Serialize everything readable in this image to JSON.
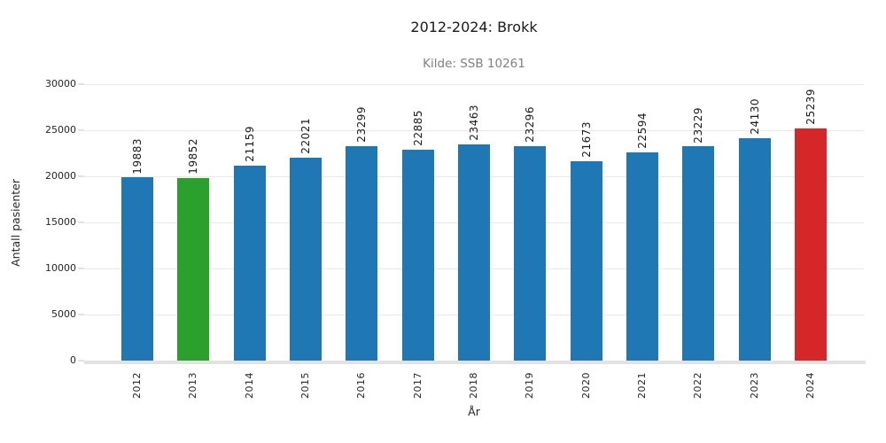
{
  "chart_data": {
    "type": "bar",
    "title": "2012-2024: Brokk",
    "subtitle": "Kilde: SSB 10261",
    "xlabel": "År",
    "ylabel": "Antall pasienter",
    "categories": [
      "2012",
      "2013",
      "2014",
      "2015",
      "2016",
      "2017",
      "2018",
      "2019",
      "2020",
      "2021",
      "2022",
      "2023",
      "2024"
    ],
    "values": [
      19883,
      19852,
      21159,
      22021,
      23299,
      22885,
      23463,
      23296,
      21673,
      22594,
      23229,
      24130,
      25239
    ],
    "bar_colors": [
      "#1f77b4",
      "#2ca02c",
      "#1f77b4",
      "#1f77b4",
      "#1f77b4",
      "#1f77b4",
      "#1f77b4",
      "#1f77b4",
      "#1f77b4",
      "#1f77b4",
      "#1f77b4",
      "#1f77b4",
      "#d62728"
    ],
    "value_labels": [
      "19883",
      "19852",
      "21159",
      "22021",
      "23299",
      "22885",
      "23463",
      "23296",
      "21673",
      "22594",
      "23229",
      "24130",
      "25239"
    ],
    "yticks": [
      0,
      5000,
      10000,
      15000,
      20000,
      25000,
      30000
    ],
    "ytick_labels": [
      "0",
      "5000",
      "10000",
      "15000",
      "20000",
      "25000",
      "30000"
    ],
    "ylim": [
      0,
      30000
    ],
    "grid": "horizontal-only",
    "legend": "none",
    "bar_label_rotation": 90,
    "x_tick_rotation": 90
  },
  "colors": {
    "bar_default": "#1f77b4",
    "bar_highlight_green": "#2ca02c",
    "bar_highlight_red": "#d62728",
    "gridline": "#e8e8e8",
    "axis_spine": "#e2e2e2",
    "title_text": "#1a1a1a",
    "subtitle_text": "#808080",
    "tick_text": "#262626",
    "background": "#ffffff"
  }
}
